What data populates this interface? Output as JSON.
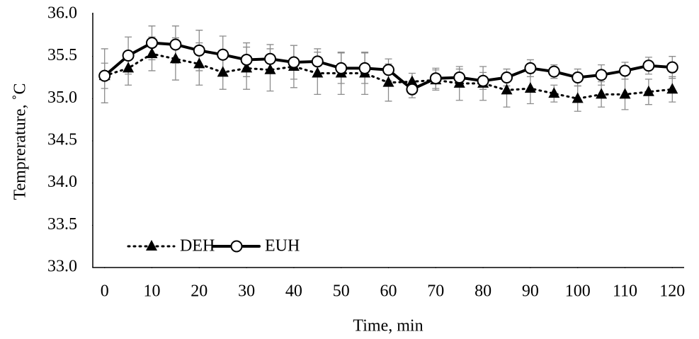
{
  "chart_data": {
    "type": "line",
    "x_label": "Time, min",
    "y_label": "Temprerature, ˚C",
    "x": [
      0,
      5,
      10,
      15,
      20,
      25,
      30,
      35,
      40,
      45,
      50,
      55,
      60,
      65,
      70,
      75,
      80,
      85,
      90,
      95,
      100,
      105,
      110,
      115,
      120
    ],
    "series": [
      {
        "name": "DEH",
        "color": "#000000",
        "line_style": "dotted",
        "marker": "triangle",
        "values": [
          35.27,
          35.36,
          35.53,
          35.47,
          35.41,
          35.31,
          35.36,
          35.34,
          35.38,
          35.3,
          35.3,
          35.3,
          35.19,
          35.2,
          35.22,
          35.18,
          35.18,
          35.1,
          35.12,
          35.06,
          35.0,
          35.05,
          35.05,
          35.08,
          35.11
        ],
        "errors": [
          0.15,
          0.2,
          0.2,
          0.25,
          0.25,
          0.2,
          0.25,
          0.25,
          0.25,
          0.25,
          0.25,
          0.25,
          0.22,
          0.1,
          0.12,
          0.2,
          0.2,
          0.2,
          0.18,
          0.1,
          0.15,
          0.15,
          0.18,
          0.15,
          0.15
        ]
      },
      {
        "name": "EUH",
        "color": "#000000",
        "line_style": "solid",
        "marker": "circle",
        "values": [
          35.27,
          35.51,
          35.66,
          35.64,
          35.57,
          35.52,
          35.46,
          35.47,
          35.43,
          35.44,
          35.36,
          35.36,
          35.34,
          35.11,
          35.24,
          35.25,
          35.21,
          35.25,
          35.36,
          35.32,
          35.25,
          35.28,
          35.33,
          35.39,
          35.37
        ],
        "errors": [
          0.32,
          0.22,
          0.2,
          0.22,
          0.24,
          0.22,
          0.2,
          0.17,
          0.2,
          0.15,
          0.18,
          0.18,
          0.13,
          0.1,
          0.12,
          0.1,
          0.1,
          0.1,
          0.1,
          0.08,
          0.1,
          0.12,
          0.1,
          0.1,
          0.13
        ]
      }
    ],
    "xlim": [
      -2.5,
      122.5
    ],
    "xticks": [
      0,
      10,
      20,
      30,
      40,
      50,
      60,
      70,
      80,
      90,
      100,
      110,
      120
    ],
    "ylim": [
      33.0,
      36.0
    ],
    "yticks": [
      {
        "value": 33.0,
        "label": "33.0"
      },
      {
        "value": 33.5,
        "label": "33.5"
      },
      {
        "value": 34.0,
        "label": "34.0"
      },
      {
        "value": 34.5,
        "label": "34.5"
      },
      {
        "value": 35.0,
        "label": "35.0"
      },
      {
        "value": 35.5,
        "label": "35.5"
      },
      {
        "value": 36.0,
        "label": "36.0"
      }
    ],
    "error_color": "#8c8c8c",
    "legend": "lower left",
    "grid": false
  }
}
